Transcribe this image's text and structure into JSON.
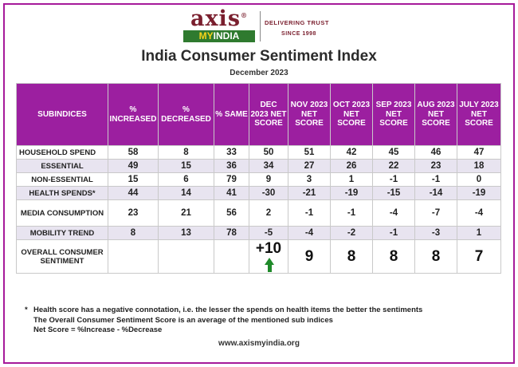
{
  "logo": {
    "axis": "axis",
    "registered": "®",
    "my": "MY",
    "india": "INDIA",
    "tagline_1": "DELIVERING TRUST",
    "tagline_2": "SINCE 1998",
    "brand_color": "#7a1f2e",
    "bar_color": "#2f7a2f"
  },
  "title": "India Consumer Sentiment Index",
  "subtitle": "December 2023",
  "table": {
    "header_color": "#9c1fa0",
    "shade_color": "#e8e4f0",
    "columns": [
      "SUBINDICES",
      "% INCREASED",
      "% DECREASED",
      "% SAME",
      "DEC 2023 NET SCORE",
      "NOV 2023 NET SCORE",
      "OCT 2023 NET SCORE",
      "SEP 2023 NET SCORE",
      "AUG 2023 NET SCORE",
      "JULY 2023 NET SCORE"
    ],
    "rows": [
      {
        "label": "HOUSEHOLD SPEND",
        "values": [
          "58",
          "8",
          "33",
          "50",
          "51",
          "42",
          "45",
          "46",
          "47"
        ]
      },
      {
        "label": "ESSENTIAL",
        "values": [
          "49",
          "15",
          "36",
          "34",
          "27",
          "26",
          "22",
          "23",
          "18"
        ]
      },
      {
        "label": "NON-ESSENTIAL",
        "values": [
          "15",
          "6",
          "79",
          "9",
          "3",
          "1",
          "-1",
          "-1",
          "0"
        ]
      },
      {
        "label": "HEALTH SPENDS*",
        "values": [
          "44",
          "14",
          "41",
          "-30",
          "-21",
          "-19",
          "-15",
          "-14",
          "-19"
        ]
      },
      {
        "label": "MEDIA CONSUMPTION",
        "values": [
          "23",
          "21",
          "56",
          "2",
          "-1",
          "-1",
          "-4",
          "-7",
          "-4"
        ]
      },
      {
        "label": "MOBILITY TREND",
        "values": [
          "8",
          "13",
          "78",
          "-5",
          "-4",
          "-2",
          "-1",
          "-3",
          "1"
        ]
      }
    ],
    "overall": {
      "label": "OVERALL CONSUMER SENTIMENT",
      "dec": "+10",
      "trend_icon": "up-arrow-icon",
      "trend_color": "#1f8a2a",
      "nov": "9",
      "oct": "8",
      "sep": "8",
      "aug": "8",
      "jul": "7"
    }
  },
  "notes": {
    "star": "*",
    "line1": "Health score has a negative connotation, i.e. the lesser the spends on health items the better the sentiments",
    "line2": "The Overall Consumer Sentiment Score is an average of the mentioned sub indices",
    "line3": "Net Score = %Increase - %Decrease"
  },
  "url": "www.axismyindia.org"
}
